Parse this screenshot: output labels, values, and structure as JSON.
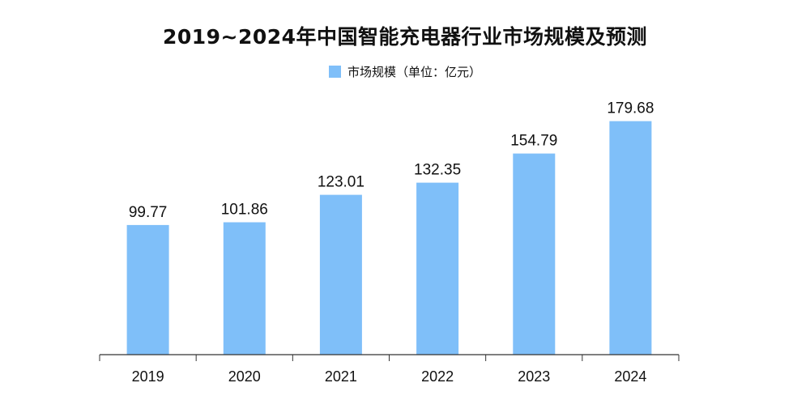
{
  "colors": {
    "bar": "#7fbff9",
    "axis": "#333333"
  },
  "chart_data": {
    "type": "bar",
    "title": "2019~2024年中国智能充电器行业市场规模及预测",
    "categories": [
      "2019",
      "2020",
      "2021",
      "2022",
      "2023",
      "2024"
    ],
    "series": [
      {
        "name": "市场规模（单位：亿元）",
        "values": [
          99.77,
          101.86,
          123.01,
          132.35,
          154.79,
          179.68
        ],
        "labels": [
          "99.77",
          "101.86",
          "123.01",
          "132.35",
          "154.79",
          "179.68"
        ]
      }
    ],
    "ylim": [
      0,
      190
    ],
    "grid": false,
    "legend": "top-center",
    "xlabel": "",
    "ylabel": ""
  }
}
